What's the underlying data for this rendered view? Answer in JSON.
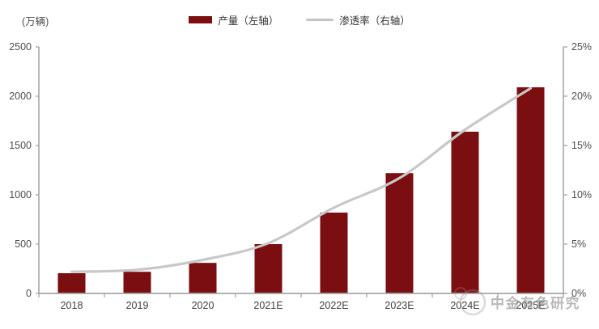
{
  "header": {
    "y_axis_unit": "(万辆)"
  },
  "legend": [
    {
      "label": "产量（左轴）",
      "type": "bar",
      "color": "#7a0e10"
    },
    {
      "label": "渗透率（右轴）",
      "type": "line",
      "color": "#c4c4c4"
    }
  ],
  "watermark": {
    "text": "中金有色研究"
  },
  "colors": {
    "bar": "#7a0e10",
    "line": "#c8c8c8",
    "axis": "#a6a6a6",
    "tick_text": "#4d4d4d"
  },
  "chart_data": {
    "type": "bar",
    "title": "",
    "categories": [
      "2018",
      "2019",
      "2020",
      "2021E",
      "2022E",
      "2023E",
      "2024E",
      "2025E"
    ],
    "series": [
      {
        "name": "产量（左轴）",
        "type": "bar",
        "axis": "left",
        "color": "#7a0e10",
        "values": [
          205,
          220,
          310,
          500,
          820,
          1220,
          1640,
          2090
        ]
      },
      {
        "name": "渗透率（右轴）",
        "type": "line",
        "axis": "right",
        "color": "#c8c8c8",
        "unit": "%",
        "values": [
          2.2,
          2.4,
          3.4,
          5.1,
          8.7,
          11.7,
          16.6,
          20.8
        ]
      }
    ],
    "left_axis": {
      "label": "(万辆)",
      "min": 0,
      "max": 2500,
      "tick_labels": [
        "0",
        "500",
        "1000",
        "1500",
        "2000",
        "2500"
      ]
    },
    "right_axis": {
      "min": 0,
      "max": 25,
      "tick_labels": [
        "0%",
        "5%",
        "10%",
        "15%",
        "20%",
        "25%"
      ]
    },
    "grid": false,
    "legend_position": "top-center"
  }
}
